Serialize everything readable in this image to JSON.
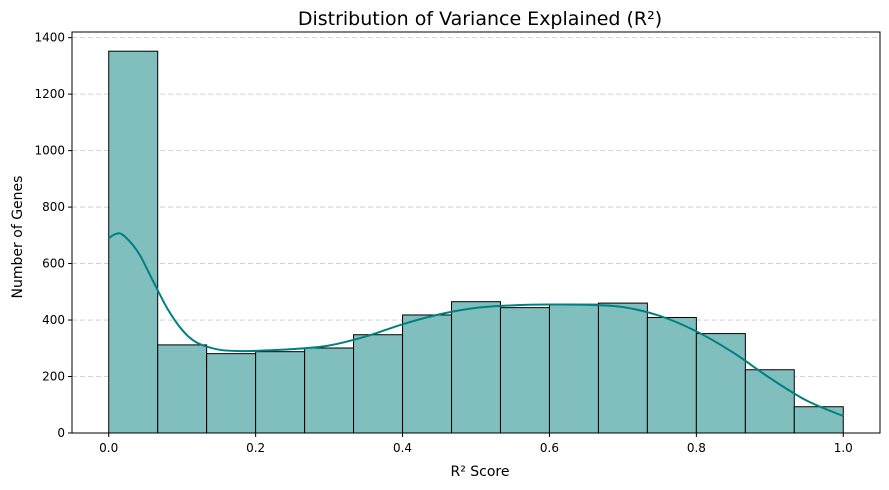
{
  "chart_data": {
    "type": "bar",
    "subtype": "histogram-with-kde",
    "title": "Distribution of Variance Explained (R²)",
    "xlabel": "R² Score",
    "ylabel": "Number of Genes",
    "xlim": [
      -0.05,
      1.05
    ],
    "ylim": [
      0,
      1420
    ],
    "x_ticks": [
      0.0,
      0.2,
      0.4,
      0.6,
      0.8,
      1.0
    ],
    "x_tick_labels": [
      "0.0",
      "0.2",
      "0.4",
      "0.6",
      "0.8",
      "1.0"
    ],
    "y_ticks": [
      0,
      200,
      400,
      600,
      800,
      1000,
      1200,
      1400
    ],
    "y_tick_labels": [
      "0",
      "200",
      "400",
      "600",
      "800",
      "1000",
      "1200",
      "1400"
    ],
    "grid": "y-dashed",
    "bins": [
      {
        "start": 0.0,
        "end": 0.0667,
        "count": 1352
      },
      {
        "start": 0.0667,
        "end": 0.1333,
        "count": 312
      },
      {
        "start": 0.1333,
        "end": 0.2,
        "count": 281
      },
      {
        "start": 0.2,
        "end": 0.2667,
        "count": 288
      },
      {
        "start": 0.2667,
        "end": 0.3333,
        "count": 301
      },
      {
        "start": 0.3333,
        "end": 0.4,
        "count": 348
      },
      {
        "start": 0.4,
        "end": 0.4667,
        "count": 418
      },
      {
        "start": 0.4667,
        "end": 0.5333,
        "count": 465
      },
      {
        "start": 0.5333,
        "end": 0.6,
        "count": 444
      },
      {
        "start": 0.6,
        "end": 0.6667,
        "count": 456
      },
      {
        "start": 0.6667,
        "end": 0.7333,
        "count": 460
      },
      {
        "start": 0.7333,
        "end": 0.8,
        "count": 409
      },
      {
        "start": 0.8,
        "end": 0.8667,
        "count": 352
      },
      {
        "start": 0.8667,
        "end": 0.9333,
        "count": 224
      },
      {
        "start": 0.9333,
        "end": 1.0,
        "count": 93
      }
    ],
    "kde": {
      "x": [
        0.0,
        0.01,
        0.02,
        0.04,
        0.06,
        0.08,
        0.1,
        0.12,
        0.15,
        0.18,
        0.2,
        0.25,
        0.3,
        0.35,
        0.4,
        0.45,
        0.5,
        0.55,
        0.6,
        0.65,
        0.7,
        0.75,
        0.8,
        0.85,
        0.9,
        0.95,
        1.0
      ],
      "y": [
        690,
        705,
        700,
        640,
        540,
        440,
        365,
        320,
        295,
        290,
        291,
        297,
        310,
        342,
        385,
        420,
        443,
        452,
        455,
        454,
        446,
        415,
        360,
        285,
        195,
        115,
        60
      ]
    },
    "colors": {
      "bar_fill": "#81bfbf",
      "bar_edge": "#000000",
      "kde_line": "#008080",
      "grid": "#c8c8c8"
    }
  }
}
